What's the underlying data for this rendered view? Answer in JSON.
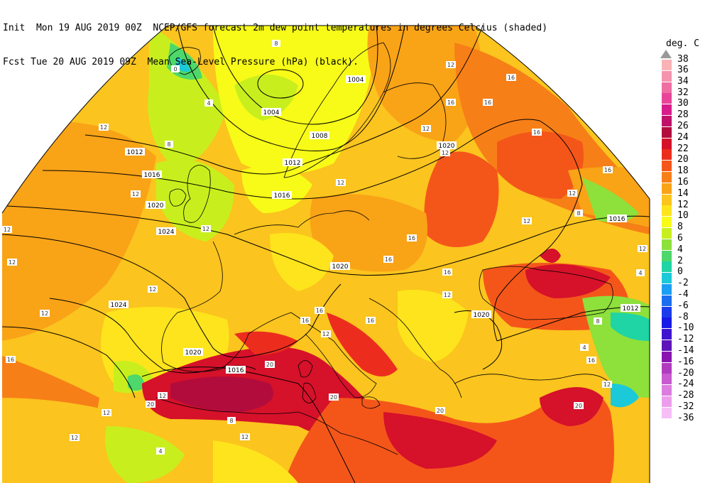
{
  "header": {
    "line1_left": "Init  Mon 19 AUG 2019 00Z",
    "line1_right": "NCEP/GFS forecast 2m dew point temperatures in degrees Celcius (shaded)",
    "line2_left": "Fcst Tue 20 AUG 2019 09Z",
    "line2_right": "Mean Sea-Level Pressure (hPa) (black)."
  },
  "legend": {
    "title": "deg. C",
    "top_label": "38",
    "items": [
      {
        "label": "36",
        "color": "#f9b3b6"
      },
      {
        "label": "34",
        "color": "#f494ad"
      },
      {
        "label": "32",
        "color": "#ef6fa3"
      },
      {
        "label": "30",
        "color": "#e8449a"
      },
      {
        "label": "28",
        "color": "#d81c8c"
      },
      {
        "label": "26",
        "color": "#c1106a"
      },
      {
        "label": "24",
        "color": "#b20c3c"
      },
      {
        "label": "22",
        "color": "#d6112a"
      },
      {
        "label": "20",
        "color": "#ec2d1e"
      },
      {
        "label": "18",
        "color": "#f4561a"
      },
      {
        "label": "16",
        "color": "#f77f17"
      },
      {
        "label": "14",
        "color": "#f9a317"
      },
      {
        "label": "12",
        "color": "#fbc41e"
      },
      {
        "label": "10",
        "color": "#fee41c"
      },
      {
        "label": "8",
        "color": "#f7fb17"
      },
      {
        "label": "6",
        "color": "#c8ef1d"
      },
      {
        "label": "4",
        "color": "#8ee03b"
      },
      {
        "label": "2",
        "color": "#4ed76a"
      },
      {
        "label": "0",
        "color": "#1fd4a5"
      },
      {
        "label": "-2",
        "color": "#1bc9d8"
      },
      {
        "label": "-4",
        "color": "#1b9ef3"
      },
      {
        "label": "-6",
        "color": "#1c6ef0"
      },
      {
        "label": "-8",
        "color": "#1c3cec"
      },
      {
        "label": "-10",
        "color": "#1a1ae6"
      },
      {
        "label": "-12",
        "color": "#3e15cf"
      },
      {
        "label": "-14",
        "color": "#5f14b9"
      },
      {
        "label": "-16",
        "color": "#8a14b0"
      },
      {
        "label": "-20",
        "color": "#b13bbf"
      },
      {
        "label": "-24",
        "color": "#c95ad0"
      },
      {
        "label": "-28",
        "color": "#dc7ddf"
      },
      {
        "label": "-32",
        "color": "#ec9eec"
      },
      {
        "label": "-36",
        "color": "#f6bdf6"
      }
    ]
  },
  "isobars": [
    {
      "label": "1004"
    },
    {
      "label": "1004"
    },
    {
      "label": "1008"
    },
    {
      "label": "1012"
    },
    {
      "label": "1012"
    },
    {
      "label": "1016"
    },
    {
      "label": "1016"
    },
    {
      "label": "1020"
    },
    {
      "label": "1024"
    },
    {
      "label": "1024"
    },
    {
      "label": "1020"
    },
    {
      "label": "1016"
    },
    {
      "label": "1020"
    },
    {
      "label": "1020"
    },
    {
      "label": "1016"
    },
    {
      "label": "1012"
    },
    {
      "label": "1020"
    }
  ],
  "dewpoint_labels": [
    "0",
    "4",
    "8",
    "8",
    "12",
    "12",
    "12",
    "12",
    "12",
    "12",
    "12",
    "12",
    "16",
    "16",
    "16",
    "16",
    "16",
    "16",
    "16",
    "20",
    "20",
    "20",
    "20",
    "20",
    "12",
    "8",
    "12",
    "12",
    "4",
    "8",
    "4",
    "12",
    "16",
    "12",
    "12",
    "16",
    "4",
    "12",
    "12",
    "12",
    "16",
    "16",
    "12",
    "16",
    "12",
    "16",
    "8",
    "12",
    "12"
  ]
}
